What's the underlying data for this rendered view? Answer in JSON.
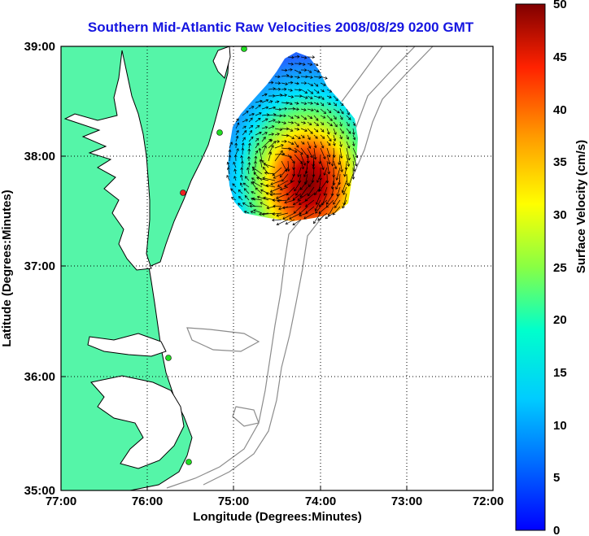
{
  "title": "Southern Mid-Atlantic Raw Velocities 2008/08/29 0200 GMT",
  "x_axis": {
    "label": "Longitude (Degrees:Minutes)",
    "ticks": [
      "77:00",
      "76:00",
      "75:00",
      "74:00",
      "73:00",
      "72:00"
    ]
  },
  "y_axis": {
    "label": "Latitude (Degrees:Minutes)",
    "ticks": [
      "39:00",
      "38:00",
      "37:00",
      "36:00",
      "35:00"
    ]
  },
  "colorbar": {
    "label": "Surface Velocity (cm/s)",
    "ticks": [
      "50",
      "45",
      "40",
      "35",
      "30",
      "25",
      "20",
      "15",
      "10",
      "5",
      "0"
    ],
    "min": 0,
    "max": 50,
    "colormap": "jet"
  },
  "colors": {
    "land": "#55f5a8",
    "coastline": "#000000",
    "bathymetry": "#8c8c8c",
    "title": "#1515e0",
    "station_active": "#22dd22",
    "station_alert": "#ee2222"
  },
  "map": {
    "extent": {
      "lon_min": -77,
      "lon_max": -72,
      "lat_min": 35,
      "lat_max": 39
    },
    "grid": true
  }
}
